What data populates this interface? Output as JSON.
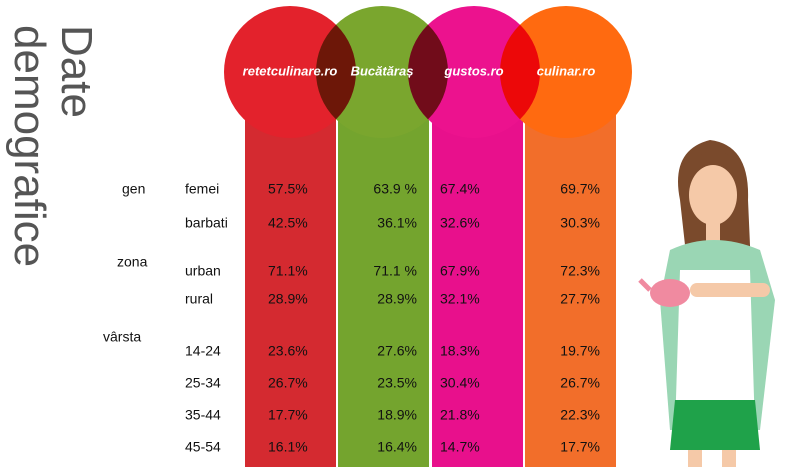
{
  "title": [
    "Date",
    "demografice"
  ],
  "brands": [
    "retetculinare.ro",
    "Bucătăraș",
    "gustos.ro",
    "culinar.ro"
  ],
  "rows": [
    {
      "group": "gen",
      "label": "femei",
      "values": [
        "57.5%",
        "63.9 %",
        "67.4%",
        "69.7%"
      ]
    },
    {
      "label": "barbati",
      "values": [
        "42.5%",
        "36.1%",
        "32.6%",
        "30.3%"
      ]
    },
    {
      "group": "zona",
      "label": "urban",
      "values": [
        "71.1%",
        "71.1 %",
        "67.9%",
        "72.3%"
      ]
    },
    {
      "label": "rural",
      "values": [
        "28.9%",
        "28.9%",
        "32.1%",
        "27.7%"
      ]
    },
    {
      "group": "vârsta",
      "label": "14-24",
      "values": [
        "23.6%",
        "27.6%",
        "18.3%",
        "19.7%"
      ]
    },
    {
      "label": "25-34",
      "values": [
        "26.7%",
        "23.5%",
        "30.4%",
        "26.7%"
      ]
    },
    {
      "label": "35-44",
      "values": [
        "17.7%",
        "18.9%",
        "21.8%",
        "22.3%"
      ]
    },
    {
      "label": "45-54",
      "values": [
        "16.1%",
        "16.4%",
        "14.7%",
        "17.7%"
      ]
    }
  ]
}
